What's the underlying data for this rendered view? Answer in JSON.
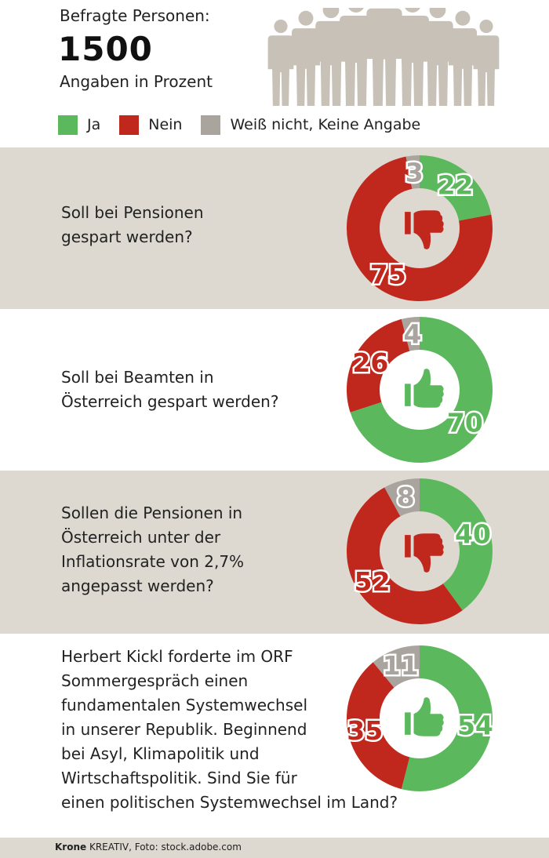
{
  "header": {
    "respondents_label": "Befragte Personen:",
    "respondents_count": "1500",
    "unit_label": "Angaben in Prozent"
  },
  "legend": [
    {
      "label": "Ja",
      "color": "#5cb85c"
    },
    {
      "label": "Nein",
      "color": "#c0281e"
    },
    {
      "label": "Weiß nicht, Keine Angabe",
      "color": "#a9a49e"
    }
  ],
  "questions": [
    {
      "text": "Soll bei Pensionen gespart werden?",
      "lines": [
        "Soll bei Pensionen",
        "gespart werden?"
      ],
      "icon": "thumbs-down-icon"
    },
    {
      "text": "Soll bei Beamten in Österreich gespart werden?",
      "lines": [
        "Soll bei Beamten in",
        "Österreich gespart werden?"
      ],
      "icon": "thumbs-up-icon"
    },
    {
      "text": "Sollen die Pensionen in Österreich unter der Inflationsrate von 2,7% angepasst werden?",
      "lines": [
        "Sollen die Pensionen in",
        "Österreich unter der",
        "Inflationsrate von 2,7%",
        "angepasst werden?"
      ],
      "icon": "thumbs-down-icon"
    },
    {
      "text": "Herbert Kickl forderte im ORF Sommergespräch einen fundamentalen Systemwechsel in unserer Republik. Beginnend bei Asyl, Klimapolitik und Wirtschaftspolitik. Sind Sie für einen politischen Systemwechsel im Land?",
      "lines": [
        "Herbert Kickl forderte im ORF",
        "Sommergespräch einen",
        "fundamentalen Systemwechsel",
        "in unserer Republik. Beginnend",
        "bei Asyl, Klimapolitik und",
        "Wirtschaftspolitik. Sind Sie für",
        "einen politischen Systemwechsel im Land?"
      ],
      "icon": "thumbs-up-icon"
    }
  ],
  "chart_data": [
    {
      "type": "pie",
      "categories": [
        "Ja",
        "Nein",
        "Weiß nicht, Keine Angabe"
      ],
      "values": [
        22,
        75,
        3
      ],
      "colors": [
        "#5cb85c",
        "#c0281e",
        "#a9a49e"
      ]
    },
    {
      "type": "pie",
      "categories": [
        "Ja",
        "Nein",
        "Weiß nicht, Keine Angabe"
      ],
      "values": [
        70,
        26,
        4
      ],
      "colors": [
        "#5cb85c",
        "#c0281e",
        "#a9a49e"
      ]
    },
    {
      "type": "pie",
      "categories": [
        "Ja",
        "Nein",
        "Weiß nicht, Keine Angabe"
      ],
      "values": [
        40,
        52,
        8
      ],
      "colors": [
        "#5cb85c",
        "#c0281e",
        "#a9a49e"
      ]
    },
    {
      "type": "pie",
      "categories": [
        "Ja",
        "Nein",
        "Weiß nicht, Keine Angabe"
      ],
      "values": [
        54,
        35,
        11
      ],
      "colors": [
        "#5cb85c",
        "#c0281e",
        "#a9a49e"
      ]
    }
  ],
  "footer": {
    "brand": "Krone",
    "credit": " KREATIV, Foto: stock.adobe.com"
  }
}
